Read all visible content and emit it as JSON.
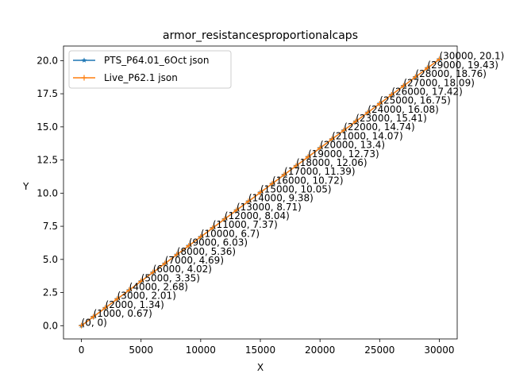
{
  "chart_data": {
    "type": "line",
    "title": "armor_resistancesproportionalcaps",
    "xlabel": "X",
    "ylabel": "Y",
    "xlim": [
      -1500,
      31500
    ],
    "ylim": [
      -1.0,
      21.1
    ],
    "xticks": [
      0,
      5000,
      10000,
      15000,
      20000,
      25000,
      30000
    ],
    "xtick_labels": [
      "0",
      "5000",
      "10000",
      "15000",
      "20000",
      "25000",
      "30000"
    ],
    "yticks": [
      0.0,
      2.5,
      5.0,
      7.5,
      10.0,
      12.5,
      15.0,
      17.5,
      20.0
    ],
    "ytick_labels": [
      "0.0",
      "2.5",
      "5.0",
      "7.5",
      "10.0",
      "12.5",
      "15.0",
      "17.5",
      "20.0"
    ],
    "grid": false,
    "legend_position": "top-left",
    "x": [
      0,
      1000,
      2000,
      3000,
      4000,
      5000,
      6000,
      7000,
      8000,
      9000,
      10000,
      11000,
      12000,
      13000,
      14000,
      15000,
      16000,
      17000,
      18000,
      19000,
      20000,
      21000,
      22000,
      23000,
      24000,
      25000,
      26000,
      27000,
      28000,
      29000,
      30000
    ],
    "series": [
      {
        "name": "PTS_P64.01_6Oct json",
        "color": "#1f77b4",
        "marker": "star",
        "values": [
          0,
          0.67,
          1.34,
          2.01,
          2.68,
          3.35,
          4.02,
          4.69,
          5.36,
          6.03,
          6.7,
          7.37,
          8.04,
          8.71,
          9.38,
          10.05,
          10.72,
          11.39,
          12.06,
          12.73,
          13.4,
          14.07,
          14.74,
          15.41,
          16.08,
          16.75,
          17.42,
          18.09,
          18.76,
          19.43,
          20.1
        ]
      },
      {
        "name": "Live_P62.1 json",
        "color": "#ff7f0e",
        "marker": "plus",
        "values": [
          0,
          0.67,
          1.34,
          2.01,
          2.68,
          3.35,
          4.02,
          4.69,
          5.36,
          6.03,
          6.7,
          7.37,
          8.04,
          8.71,
          9.38,
          10.05,
          10.72,
          11.39,
          12.06,
          12.73,
          13.4,
          14.07,
          14.74,
          15.41,
          16.08,
          16.75,
          17.42,
          18.09,
          18.76,
          19.43,
          20.1
        ]
      }
    ],
    "annotations": [
      "(0, 0)",
      "(1000, 0.67)",
      "(2000, 1.34)",
      "(3000, 2.01)",
      "(4000, 2.68)",
      "(5000, 3.35)",
      "(6000, 4.02)",
      "(7000, 4.69)",
      "(8000, 5.36)",
      "(9000, 6.03)",
      "(10000, 6.7)",
      "(11000, 7.37)",
      "(12000, 8.04)",
      "(13000, 8.71)",
      "(14000, 9.38)",
      "(15000, 10.05)",
      "(16000, 10.72)",
      "(17000, 11.39)",
      "(18000, 12.06)",
      "(19000, 12.73)",
      "(20000, 13.4)",
      "(21000, 14.07)",
      "(22000, 14.74)",
      "(23000, 15.41)",
      "(24000, 16.08)",
      "(25000, 16.75)",
      "(26000, 17.42)",
      "(27000, 18.09)",
      "(28000, 18.76)",
      "(29000, 19.43)",
      "(30000, 20.1)"
    ]
  }
}
